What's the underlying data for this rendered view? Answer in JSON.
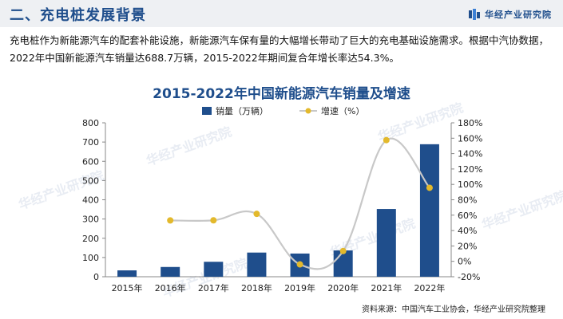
{
  "header": {
    "title": "二、充电桩发展背景",
    "brand": "华经产业研究院"
  },
  "intro": "充电桩作为新能源汽车的配套补能设施，新能源汽车保有量的大幅增长带动了巨大的充电基础设施需求。根据中汽协数据，2022年中国新能源汽车销量达688.7万辆，2015-2022年期间复合年增长率达54.3%。",
  "watermark_text": "华经产业研究院",
  "source": "资料来源：中国汽车工业协会，华经产业研究院整理",
  "colors": {
    "accent": "#1f4e8c",
    "bar": "#1f4e8c",
    "line": "#c8c8c8",
    "marker": "#e3b92c"
  },
  "chart_data": {
    "type": "bar+line",
    "title": "2015-2022年中国新能源汽车销量及增速",
    "categories": [
      "2015年",
      "2016年",
      "2017年",
      "2018年",
      "2019年",
      "2020年",
      "2021年",
      "2022年"
    ],
    "series": [
      {
        "name": "销量（万辆）",
        "type": "bar",
        "axis": "left",
        "values": [
          33.1,
          50.7,
          77.7,
          125.6,
          120.6,
          136.7,
          352.1,
          688.7
        ]
      },
      {
        "name": "增速（%）",
        "type": "line",
        "axis": "right",
        "values": [
          null,
          53.2,
          53.3,
          61.7,
          -4.0,
          13.4,
          157.5,
          95.6
        ]
      }
    ],
    "y_left": {
      "min": 0,
      "max": 800,
      "step": 100,
      "ticks": [
        "0",
        "100",
        "200",
        "300",
        "400",
        "500",
        "600",
        "700",
        "800"
      ]
    },
    "y_right": {
      "min": -20,
      "max": 180,
      "step": 20,
      "ticks": [
        "-20%",
        "0%",
        "20%",
        "40%",
        "60%",
        "80%",
        "100%",
        "120%",
        "140%",
        "160%",
        "180%"
      ]
    },
    "legend_position": "top-center",
    "grid": false
  }
}
